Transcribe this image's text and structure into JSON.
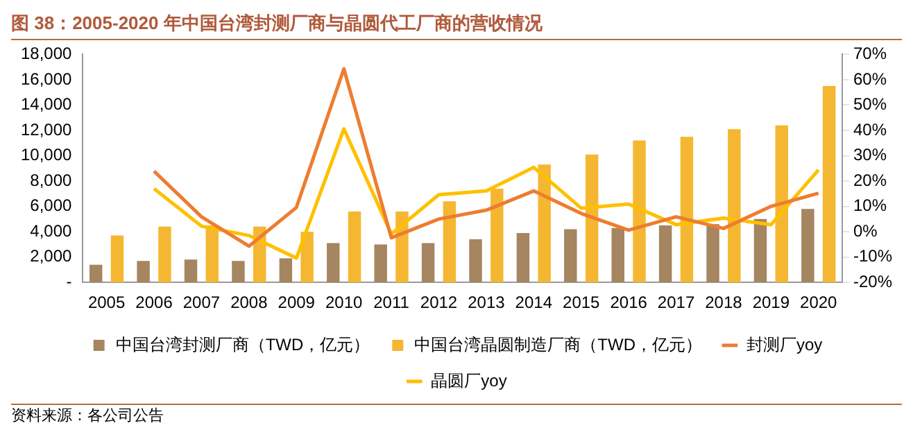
{
  "chart_data": {
    "type": "bar",
    "title": "图 38：2005-2020 年中国台湾封测厂商与晶圆代工厂商的营收情况",
    "categories": [
      "2005",
      "2006",
      "2007",
      "2008",
      "2009",
      "2010",
      "2011",
      "2012",
      "2013",
      "2014",
      "2015",
      "2016",
      "2017",
      "2018",
      "2019",
      "2020"
    ],
    "series": [
      {
        "name": "中国台湾封测厂商（TWD，亿元）",
        "color": "#a58660",
        "values": [
          1400,
          1700,
          1800,
          1700,
          1900,
          3100,
          3000,
          3100,
          3400,
          3900,
          4200,
          4300,
          4500,
          4600,
          5000,
          5800
        ]
      },
      {
        "name": "中国台湾晶圆制造厂商（TWD，亿元）",
        "color": "#f5b731",
        "values": [
          3700,
          4400,
          4500,
          4400,
          4000,
          5600,
          5600,
          6400,
          7400,
          9300,
          10100,
          11200,
          11500,
          12100,
          12400,
          15500
        ]
      },
      {
        "name": "封测厂yoy",
        "type": "line",
        "axis": "y2",
        "color": "#ed7d31",
        "values": [
          null,
          23.9,
          5.9,
          -5.7,
          9.6,
          64.3,
          -2.4,
          5.0,
          8.5,
          16.1,
          7.2,
          0.6,
          5.9,
          1.3,
          10.0,
          15.2
        ]
      },
      {
        "name": "晶圆厂yoy",
        "type": "line",
        "axis": "y2",
        "color": "#ffc000",
        "values": [
          null,
          17.0,
          2.2,
          -1.5,
          -10.4,
          40.6,
          -0.9,
          14.6,
          16.1,
          25.4,
          9.3,
          10.9,
          2.8,
          5.4,
          2.8,
          24.4
        ]
      }
    ],
    "ylim": [
      0,
      18000
    ],
    "yticks": [
      {
        "value": 0,
        "label": "-"
      },
      {
        "value": 2000,
        "label": "2,000"
      },
      {
        "value": 4000,
        "label": "4,000"
      },
      {
        "value": 6000,
        "label": "6,000"
      },
      {
        "value": 8000,
        "label": "8,000"
      },
      {
        "value": 10000,
        "label": "10,000"
      },
      {
        "value": 12000,
        "label": "12,000"
      },
      {
        "value": 14000,
        "label": "14,000"
      },
      {
        "value": 16000,
        "label": "16,000"
      },
      {
        "value": 18000,
        "label": "18,000"
      }
    ],
    "y2lim": [
      -20,
      70
    ],
    "y2ticks": [
      {
        "value": -20,
        "label": "-20%"
      },
      {
        "value": -10,
        "label": "-10%"
      },
      {
        "value": 0,
        "label": "0%"
      },
      {
        "value": 10,
        "label": "10%"
      },
      {
        "value": 20,
        "label": "20%"
      },
      {
        "value": 30,
        "label": "30%"
      },
      {
        "value": 40,
        "label": "40%"
      },
      {
        "value": 50,
        "label": "50%"
      },
      {
        "value": 60,
        "label": "60%"
      },
      {
        "value": 70,
        "label": "70%"
      }
    ],
    "grid": false,
    "legend": "bottom",
    "marker": "none",
    "line_style": "solid",
    "annotations": [
      "资料来源：各公司公告"
    ]
  }
}
